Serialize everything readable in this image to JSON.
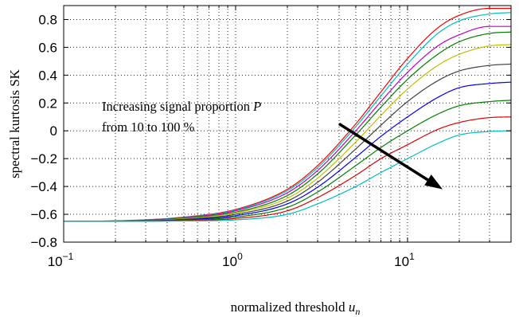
{
  "chart_data": {
    "type": "line",
    "title": "",
    "xlabel": "normalized threshold ",
    "xlabel_sub": "u",
    "xlabel_subscript": "n",
    "ylabel": "spectral kurtosis SK",
    "xscale": "log",
    "xlim": [
      0.1,
      40
    ],
    "ylim": [
      -0.8,
      0.9
    ],
    "grid": true,
    "grid_style": "dotted",
    "x_ticks": [
      {
        "value": 0.1,
        "base": "10",
        "exp": "−1"
      },
      {
        "value": 1,
        "base": "10",
        "exp": "0"
      },
      {
        "value": 10,
        "base": "10",
        "exp": "1"
      }
    ],
    "y_ticks": [
      {
        "value": -0.8,
        "label": "−0.8"
      },
      {
        "value": -0.6,
        "label": "−0.6"
      },
      {
        "value": -0.4,
        "label": "−0.4"
      },
      {
        "value": -0.2,
        "label": "−0.2"
      },
      {
        "value": 0,
        "label": "0"
      },
      {
        "value": 0.2,
        "label": "0.2"
      },
      {
        "value": 0.4,
        "label": "0.4"
      },
      {
        "value": 0.6,
        "label": "0.6"
      },
      {
        "value": 0.8,
        "label": "0.8"
      }
    ],
    "x": [
      0.1,
      0.2,
      0.5,
      1,
      2,
      3,
      5,
      7,
      10,
      15,
      20,
      30,
      40
    ],
    "series": [
      {
        "color": "#ff0000",
        "values": [
          -0.65,
          -0.647,
          -0.62,
          -0.565,
          -0.42,
          -0.25,
          0.05,
          0.28,
          0.52,
          0.74,
          0.83,
          0.88,
          0.88
        ]
      },
      {
        "color": "#00bfbf",
        "values": [
          -0.65,
          -0.647,
          -0.622,
          -0.57,
          -0.43,
          -0.265,
          0.03,
          0.25,
          0.48,
          0.7,
          0.79,
          0.84,
          0.85
        ]
      },
      {
        "color": "#bf00bf",
        "values": [
          -0.65,
          -0.648,
          -0.625,
          -0.575,
          -0.445,
          -0.285,
          0.0,
          0.21,
          0.42,
          0.61,
          0.69,
          0.75,
          0.75
        ]
      },
      {
        "color": "#008000",
        "values": [
          -0.65,
          -0.648,
          -0.628,
          -0.585,
          -0.465,
          -0.31,
          -0.03,
          0.17,
          0.37,
          0.55,
          0.64,
          0.7,
          0.71
        ]
      },
      {
        "color": "#bfbf00",
        "values": [
          -0.65,
          -0.649,
          -0.632,
          -0.59,
          -0.485,
          -0.34,
          -0.08,
          0.11,
          0.3,
          0.47,
          0.55,
          0.61,
          0.62
        ]
      },
      {
        "color": "#404040",
        "values": [
          -0.65,
          -0.649,
          -0.636,
          -0.6,
          -0.505,
          -0.37,
          -0.13,
          0.04,
          0.21,
          0.36,
          0.43,
          0.47,
          0.48
        ]
      },
      {
        "color": "#0000ff",
        "values": [
          -0.65,
          -0.649,
          -0.64,
          -0.61,
          -0.525,
          -0.405,
          -0.19,
          -0.04,
          0.1,
          0.24,
          0.31,
          0.34,
          0.35
        ]
      },
      {
        "color": "#007f00",
        "values": [
          -0.65,
          -0.65,
          -0.643,
          -0.62,
          -0.55,
          -0.44,
          -0.25,
          -0.12,
          0.0,
          0.12,
          0.18,
          0.21,
          0.22
        ]
      },
      {
        "color": "#e00000",
        "values": [
          -0.65,
          -0.65,
          -0.646,
          -0.63,
          -0.575,
          -0.48,
          -0.32,
          -0.2,
          -0.1,
          0.01,
          0.06,
          0.095,
          0.1
        ]
      },
      {
        "color": "#00bfbf",
        "values": [
          -0.65,
          -0.65,
          -0.648,
          -0.64,
          -0.6,
          -0.525,
          -0.4,
          -0.3,
          -0.2,
          -0.09,
          -0.03,
          -0.005,
          0.0
        ]
      }
    ],
    "annotation": {
      "line1": "Increasing signal proportion ",
      "line1_italic": "P",
      "line2": "from 10 to 100 %",
      "arrow_from": [
        4.0,
        0.05
      ],
      "arrow_to": [
        16,
        -0.42
      ]
    }
  }
}
